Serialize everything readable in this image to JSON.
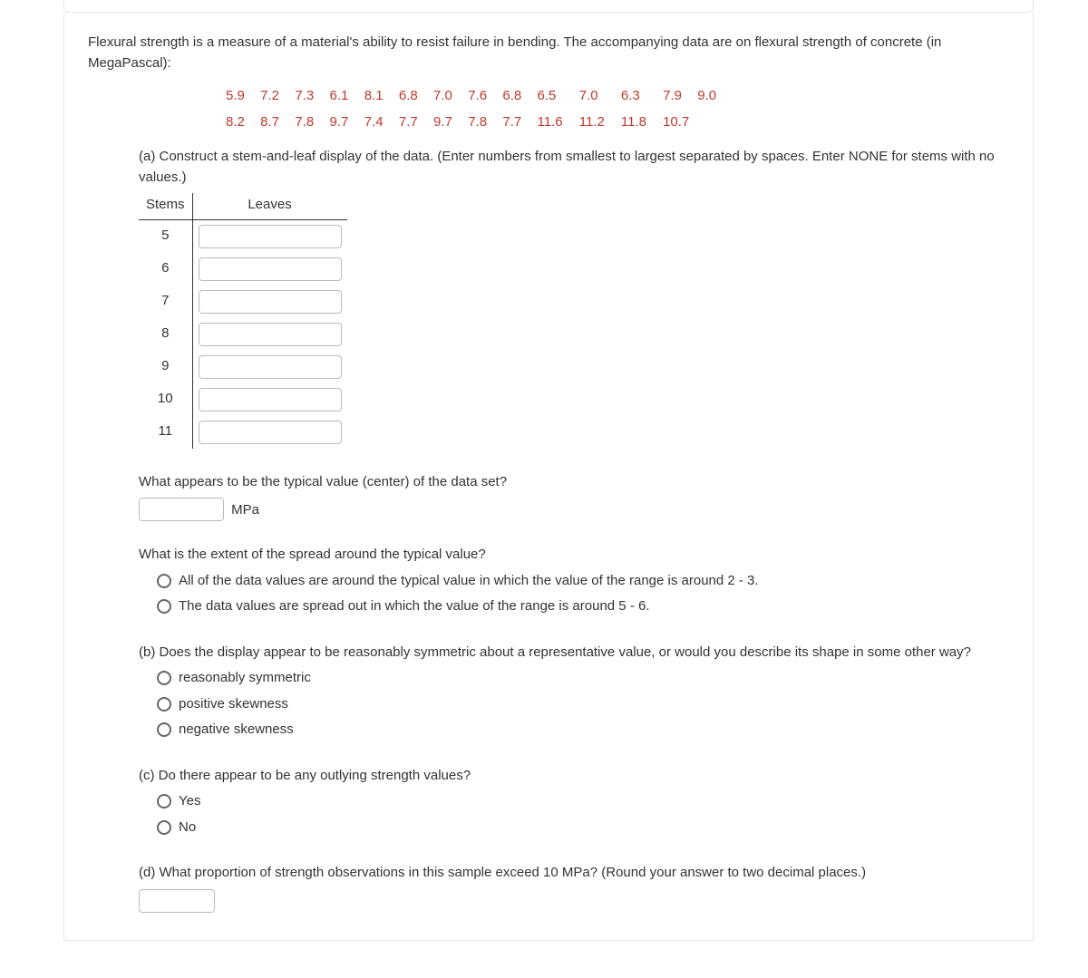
{
  "intro": "Flexural strength is a measure of a material's ability to resist failure in bending. The accompanying data are on flexural strength of concrete (in MegaPascal):",
  "data_rows": [
    [
      "5.9",
      "7.2",
      "7.3",
      "6.1",
      "8.1",
      "6.8",
      "7.0",
      "7.6",
      "6.8",
      "6.5",
      "7.0",
      "6.3",
      "7.9",
      "9.0"
    ],
    [
      "8.2",
      "8.7",
      "7.8",
      "9.7",
      "7.4",
      "7.7",
      "9.7",
      "7.8",
      "7.7",
      "11.6",
      "11.2",
      "11.8",
      "10.7",
      ""
    ]
  ],
  "part_a": {
    "prompt": "(a) Construct a stem-and-leaf display of the data. (Enter numbers from smallest to largest separated by spaces. Enter NONE for stems with no values.)",
    "stems_header": "Stems",
    "leaves_header": "Leaves",
    "stems": [
      "5",
      "6",
      "7",
      "8",
      "9",
      "10",
      "11"
    ]
  },
  "typical_q": "What appears to be the typical value (center) of the data set?",
  "typical_unit": "MPa",
  "spread_q": "What is the extent of the spread around the typical value?",
  "spread_options": [
    "All of the data values are around the typical value in which the value of the range is around 2 - 3.",
    "The data values are spread out in which the value of the range is around 5 - 6."
  ],
  "part_b": {
    "prompt": "(b) Does the display appear to be reasonably symmetric about a representative value, or would you describe its shape in some other way?",
    "options": [
      "reasonably symmetric",
      "positive skewness",
      "negative skewness"
    ]
  },
  "part_c": {
    "prompt": "(c) Do there appear to be any outlying strength values?",
    "options": [
      "Yes",
      "No"
    ]
  },
  "part_d": {
    "prompt": "(d) What proportion of strength observations in this sample exceed 10 MPa? (Round your answer to two decimal places.)"
  },
  "colors": {
    "text": "#333333",
    "data_color": "#c0392b",
    "border": "#e5e5e5",
    "input_border": "#bbbbbb",
    "radio_border": "#666666"
  }
}
